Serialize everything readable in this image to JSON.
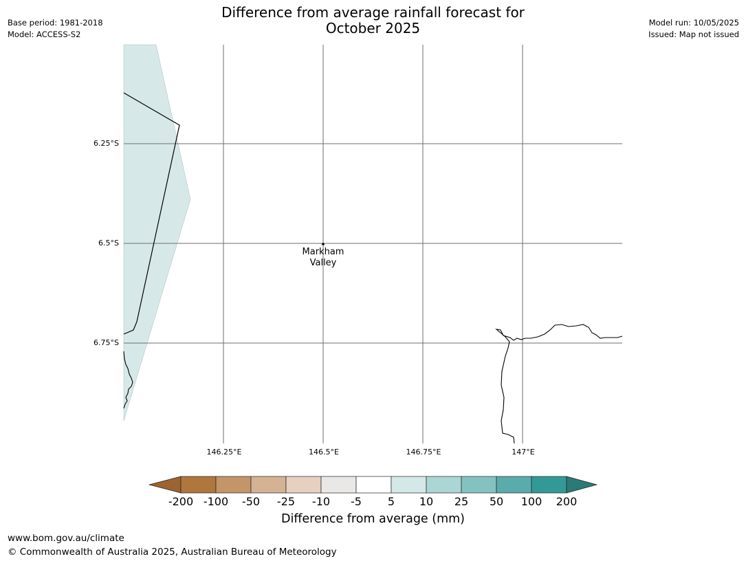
{
  "header": {
    "base_period": "Base period: 1981-2018",
    "model": "Model: ACCESS-S2",
    "model_run": "Model run: 10/05/2025",
    "issued": "Issued: Map not issued"
  },
  "title": {
    "line1": "Difference from average rainfall forecast for",
    "line2": "October 2025"
  },
  "map": {
    "lat_labels": [
      "6.25°S",
      "6.5°S",
      "6.75°S"
    ],
    "lon_labels": [
      "146.25°E",
      "146.5°E",
      "146.75°E",
      "147°E"
    ],
    "place": {
      "line1": "Markham",
      "line2": "Valley"
    },
    "region_fill": "#d6e9e8"
  },
  "colorbar": {
    "title": "Difference from average (mm)",
    "ticks": [
      "-200",
      "-100",
      "-50",
      "-25",
      "-10",
      "-5",
      "5",
      "10",
      "25",
      "50",
      "100",
      "200"
    ],
    "colors": [
      "#9c6430",
      "#af773d",
      "#c39569",
      "#d4b293",
      "#e6d1c0",
      "#e9e8e6",
      "#ffffff",
      "#d5e8e8",
      "#acd5d5",
      "#84c2c0",
      "#59acab",
      "#339996",
      "#2b7a77"
    ]
  },
  "footer": {
    "url": "www.bom.gov.au/climate",
    "copyright": "© Commonwealth of Australia 2025, Australian Bureau of Meteorology"
  }
}
